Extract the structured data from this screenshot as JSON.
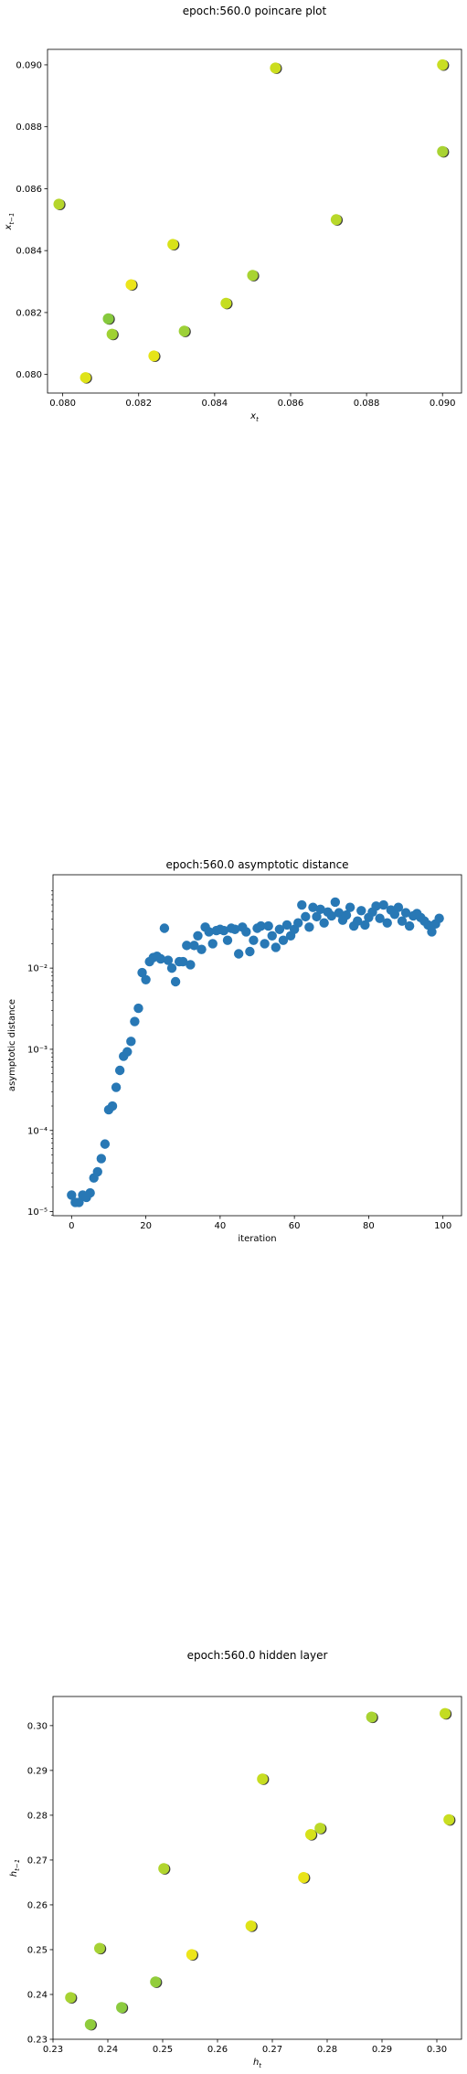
{
  "chart_data": [
    {
      "type": "scatter",
      "title": "epoch:560.0 poincare plot",
      "xlabel": "x_t",
      "ylabel": "x_{t-1}",
      "xlim": [
        0.0796,
        0.0905
      ],
      "ylim": [
        0.0794,
        0.0905
      ],
      "xticks": [
        "0.080",
        "0.082",
        "0.084",
        "0.086",
        "0.088",
        "0.090"
      ],
      "xtick_values": [
        0.08,
        0.082,
        0.084,
        0.086,
        0.088,
        0.09
      ],
      "yticks": [
        "0.080",
        "0.082",
        "0.084",
        "0.086",
        "0.088",
        "0.090"
      ],
      "ytick_values": [
        0.08,
        0.082,
        0.084,
        0.086,
        0.088,
        0.09
      ],
      "grid": false,
      "points": [
        {
          "x": 0.0799,
          "y": 0.0855,
          "color": "#b5d52b"
        },
        {
          "x": 0.0806,
          "y": 0.0799,
          "color": "#dfe318"
        },
        {
          "x": 0.0812,
          "y": 0.0818,
          "color": "#86c93d"
        },
        {
          "x": 0.0813,
          "y": 0.0813,
          "color": "#9fd133"
        },
        {
          "x": 0.0818,
          "y": 0.0829,
          "color": "#ece51b"
        },
        {
          "x": 0.0824,
          "y": 0.0806,
          "color": "#e6e418"
        },
        {
          "x": 0.0829,
          "y": 0.0842,
          "color": "#d8e219"
        },
        {
          "x": 0.0832,
          "y": 0.0814,
          "color": "#9dd137"
        },
        {
          "x": 0.0843,
          "y": 0.0823,
          "color": "#c5dd21"
        },
        {
          "x": 0.085,
          "y": 0.0832,
          "color": "#a8d332"
        },
        {
          "x": 0.0856,
          "y": 0.0899,
          "color": "#cbdd1f"
        },
        {
          "x": 0.0872,
          "y": 0.085,
          "color": "#b8d82a"
        },
        {
          "x": 0.09,
          "y": 0.09,
          "color": "#c9de23"
        },
        {
          "x": 0.09,
          "y": 0.0872,
          "color": "#a9d333"
        }
      ]
    },
    {
      "type": "scatter",
      "title": "epoch:560.0 asymptotic distance",
      "xlabel": "iteration",
      "ylabel": "asymptotic distance",
      "yscale": "log",
      "xlim": [
        -5,
        105
      ],
      "ylim_log10": [
        -5.05,
        -0.85
      ],
      "xticks": [
        "0",
        "20",
        "40",
        "60",
        "80",
        "100"
      ],
      "xtick_values": [
        0,
        20,
        40,
        60,
        80,
        100
      ],
      "yticks": [
        "10⁻⁵",
        "10⁻⁴",
        "10⁻³",
        "10⁻²"
      ],
      "ytick_values_log10": [
        -5,
        -4,
        -3,
        -2
      ],
      "grid": false,
      "marker_color": "#2878b5",
      "y": [
        1.6e-05,
        1.3e-05,
        1.3e-05,
        1.6e-05,
        1.5e-05,
        1.7e-05,
        2.6e-05,
        3.1e-05,
        4.5e-05,
        6.8e-05,
        0.00018,
        0.0002,
        0.00034,
        0.00055,
        0.00082,
        0.00093,
        0.00125,
        0.0022,
        0.0032,
        0.0088,
        0.0072,
        0.012,
        0.0135,
        0.014,
        0.013,
        0.031,
        0.0125,
        0.01,
        0.0068,
        0.012,
        0.012,
        0.019,
        0.011,
        0.019,
        0.025,
        0.017,
        0.032,
        0.028,
        0.02,
        0.029,
        0.03,
        0.029,
        0.022,
        0.031,
        0.03,
        0.015,
        0.032,
        0.028,
        0.016,
        0.022,
        0.031,
        0.033,
        0.02,
        0.033,
        0.025,
        0.018,
        0.03,
        0.022,
        0.034,
        0.025,
        0.03,
        0.036,
        0.06,
        0.043,
        0.032,
        0.056,
        0.043,
        0.053,
        0.036,
        0.049,
        0.044,
        0.065,
        0.048,
        0.039,
        0.045,
        0.056,
        0.033,
        0.038,
        0.051,
        0.034,
        0.042,
        0.049,
        0.058,
        0.041,
        0.06,
        0.036,
        0.052,
        0.046,
        0.056,
        0.038,
        0.048,
        0.033,
        0.044,
        0.047,
        0.042,
        0.038,
        0.034,
        0.028,
        0.035,
        0.041
      ]
    },
    {
      "type": "scatter",
      "title": "epoch:560.0 hidden layer",
      "xlabel": "h_t",
      "ylabel": "h_{t-1}",
      "xlim": [
        0.23,
        0.3045
      ],
      "ylim": [
        0.23,
        0.3065
      ],
      "xticks": [
        "0.23",
        "0.24",
        "0.25",
        "0.26",
        "0.27",
        "0.28",
        "0.29",
        "0.30"
      ],
      "xtick_values": [
        0.23,
        0.24,
        0.25,
        0.26,
        0.27,
        0.28,
        0.29,
        0.3
      ],
      "yticks": [
        "0.23",
        "0.24",
        "0.25",
        "0.26",
        "0.27",
        "0.28",
        "0.29",
        "0.30"
      ],
      "ytick_values": [
        0.23,
        0.24,
        0.25,
        0.26,
        0.27,
        0.28,
        0.29,
        0.3
      ],
      "grid": false,
      "points": [
        {
          "x": 0.2332,
          "y": 0.2393,
          "color": "#a7d333"
        },
        {
          "x": 0.2368,
          "y": 0.2333,
          "color": "#8fcc3c"
        },
        {
          "x": 0.2385,
          "y": 0.2503,
          "color": "#a6d235"
        },
        {
          "x": 0.2425,
          "y": 0.2371,
          "color": "#8ccb40"
        },
        {
          "x": 0.2487,
          "y": 0.2428,
          "color": "#92cd3b"
        },
        {
          "x": 0.2502,
          "y": 0.2681,
          "color": "#b1d52e"
        },
        {
          "x": 0.2553,
          "y": 0.2489,
          "color": "#ede51b"
        },
        {
          "x": 0.2661,
          "y": 0.2553,
          "color": "#dfe318"
        },
        {
          "x": 0.2682,
          "y": 0.2881,
          "color": "#c7dd21"
        },
        {
          "x": 0.2757,
          "y": 0.2661,
          "color": "#e9e419"
        },
        {
          "x": 0.277,
          "y": 0.2757,
          "color": "#d6e21a"
        },
        {
          "x": 0.2787,
          "y": 0.2771,
          "color": "#bcd928"
        },
        {
          "x": 0.2881,
          "y": 0.3019,
          "color": "#a9d333"
        },
        {
          "x": 0.3015,
          "y": 0.3027,
          "color": "#c3dc22"
        },
        {
          "x": 0.3022,
          "y": 0.279,
          "color": "#c9de21"
        }
      ]
    }
  ]
}
